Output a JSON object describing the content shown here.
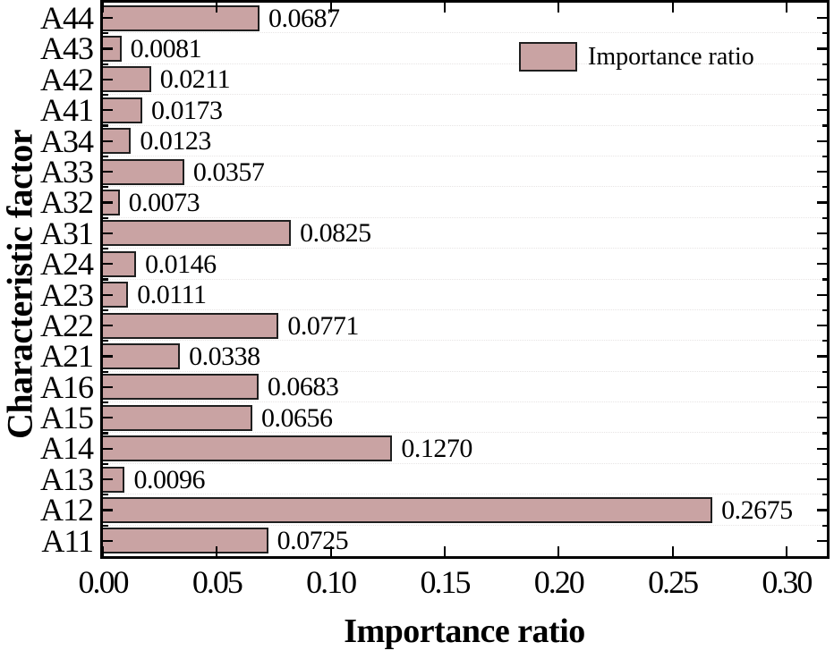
{
  "chart_data": {
    "type": "bar",
    "orientation": "horizontal",
    "title": "",
    "xlabel": "Importance ratio",
    "ylabel": "Characteristic factor",
    "categories_top_to_bottom": [
      "A44",
      "A43",
      "A42",
      "A41",
      "A34",
      "A33",
      "A32",
      "A31",
      "A24",
      "A23",
      "A22",
      "A21",
      "A16",
      "A15",
      "A14",
      "A13",
      "A12",
      "A11"
    ],
    "values_top_to_bottom": [
      0.0687,
      0.0081,
      0.0211,
      0.0173,
      0.0123,
      0.0357,
      0.0073,
      0.0825,
      0.0146,
      0.0111,
      0.0771,
      0.0338,
      0.0683,
      0.0656,
      0.127,
      0.0096,
      0.2675,
      0.0725
    ],
    "value_labels_top_to_bottom": [
      "0.0687",
      "0.0081",
      "0.0211",
      "0.0173",
      "0.0123",
      "0.0357",
      "0.0073",
      "0.0825",
      "0.0146",
      "0.0111",
      "0.0771",
      "0.0338",
      "0.0683",
      "0.0656",
      "0.1270",
      "0.0096",
      "0.2675",
      "0.0725"
    ],
    "xlim": [
      0,
      0.3177
    ],
    "xticks": [
      0.0,
      0.05,
      0.1,
      0.15,
      0.2,
      0.25,
      0.3
    ],
    "xtick_labels": [
      "0.00",
      "0.05",
      "0.10",
      "0.15",
      "0.20",
      "0.25",
      "0.30"
    ],
    "legend": {
      "label": "Importance ratio",
      "position": "upper-right-inside"
    },
    "colors": {
      "bar_fill": "#c9a3a3",
      "bar_edge": "#1f1f1f",
      "spine": "#000000",
      "grid": "#e7e4e4"
    },
    "grid": "horizontal dotted lines at category boundaries",
    "ticks": "inward on all four spines; major at category centers / 0.05 steps, minor at category boundaries"
  }
}
